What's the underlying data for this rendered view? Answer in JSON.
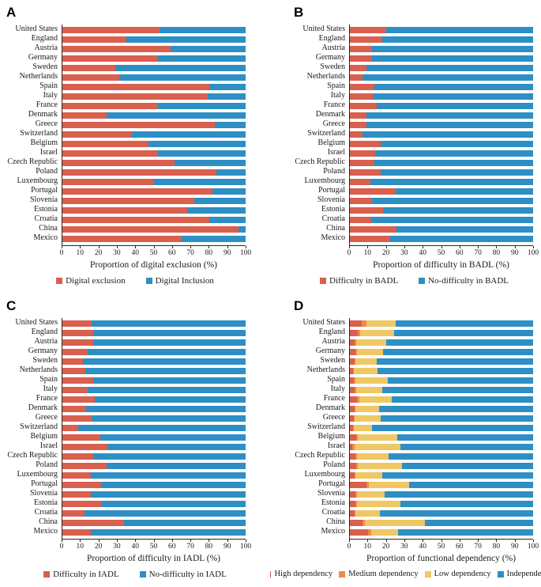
{
  "figure": {
    "background": "#ffffff"
  },
  "colors": {
    "red": "#D95F4E",
    "orange": "#F08A4B",
    "yellow": "#EFC764",
    "blue": "#2D8FC4",
    "axis": "#262626"
  },
  "chart_data": [
    {
      "type": "bar",
      "stacked": true,
      "orientation": "horizontal",
      "label": "A",
      "xlabel": "Proportion of digital exclusion (%)",
      "xlim": [
        0,
        100
      ],
      "x_ticks": [
        0,
        10,
        20,
        30,
        40,
        50,
        60,
        70,
        80,
        90,
        100
      ],
      "legend_position": "bottom",
      "categories": [
        "United States",
        "England",
        "Austria",
        "Germany",
        "Sweden",
        "Netherlands",
        "Spain",
        "Italy",
        "France",
        "Denmark",
        "Greece",
        "Switzerland",
        "Belgium",
        "Israel",
        "Czech Republic",
        "Poland",
        "Luxembourg",
        "Portugal",
        "Slovenia",
        "Estonia",
        "Croatia",
        "China",
        "Mexico"
      ],
      "series": [
        {
          "name": "Digital exclusion",
          "color": "#D95F4E",
          "values": [
            53,
            35,
            59,
            52,
            29,
            31,
            80,
            79.5,
            52,
            24,
            83,
            38,
            47,
            52,
            61,
            84,
            50,
            82,
            72,
            68,
            80,
            96,
            65
          ]
        },
        {
          "name": "Digital Inclusion",
          "color": "#2D8FC4",
          "values": [
            47,
            65,
            41,
            48,
            71,
            69,
            20,
            20.5,
            48,
            76,
            17,
            62,
            53,
            48,
            39,
            16,
            50,
            18,
            28,
            32,
            20,
            4,
            35
          ]
        }
      ]
    },
    {
      "type": "bar",
      "stacked": true,
      "orientation": "horizontal",
      "label": "B",
      "xlabel": "Proportion of difficulty in BADL (%)",
      "xlim": [
        0,
        100
      ],
      "x_ticks": [
        0,
        10,
        20,
        30,
        40,
        50,
        60,
        70,
        80,
        90,
        100
      ],
      "legend_position": "bottom",
      "categories": [
        "United States",
        "England",
        "Austria",
        "Germany",
        "Sweden",
        "Netherlands",
        "Spain",
        "Italy",
        "France",
        "Denmark",
        "Greece",
        "Switzerland",
        "Belgium",
        "Israel",
        "Czech Republic",
        "Poland",
        "Luxembourg",
        "Portugal",
        "Slovenia",
        "Estonia",
        "Croatia",
        "China",
        "Mexico"
      ],
      "series": [
        {
          "name": "Difficulty in BADL",
          "color": "#D95F4E",
          "values": [
            20,
            17.5,
            12,
            12,
            9,
            7,
            13.5,
            12.5,
            14.5,
            9,
            9,
            7,
            17,
            14,
            13.5,
            17,
            11,
            25,
            12,
            18,
            11.5,
            25.5,
            22
          ]
        },
        {
          "name": "No-difficulty in BADL",
          "color": "#2D8FC4",
          "values": [
            80,
            82.5,
            88,
            88,
            91,
            93,
            86.5,
            87.5,
            85.5,
            91,
            91,
            93,
            83,
            86,
            86.5,
            83,
            89,
            75,
            88,
            82,
            88.5,
            74.5,
            78
          ]
        }
      ]
    },
    {
      "type": "bar",
      "stacked": true,
      "orientation": "horizontal",
      "label": "C",
      "xlabel": "Proportion of difficulty in IADL (%)",
      "xlim": [
        0,
        100
      ],
      "x_ticks": [
        0,
        10,
        20,
        30,
        40,
        50,
        60,
        70,
        80,
        90,
        100
      ],
      "legend_position": "bottom",
      "categories": [
        "United States",
        "England",
        "Austria",
        "Germany",
        "Sweden",
        "Netherlands",
        "Spain",
        "Italy",
        "France",
        "Denmark",
        "Greece",
        "Switzerland",
        "Belgium",
        "Israel",
        "Czech Republic",
        "Poland",
        "Luxembourg",
        "Portugal",
        "Slovenia",
        "Estonia",
        "Croatia",
        "China",
        "Mexico"
      ],
      "series": [
        {
          "name": "Difficulty in IADL",
          "color": "#D95F4E",
          "values": [
            16,
            17,
            17,
            14,
            11,
            12.5,
            17,
            14,
            17.5,
            13,
            16,
            8.5,
            20.5,
            24.5,
            17,
            24,
            15.5,
            21,
            15.5,
            21,
            12,
            33.5,
            15.5
          ]
        },
        {
          "name": "No-difficulty in IADL",
          "color": "#2D8FC4",
          "values": [
            84,
            83,
            83,
            86,
            89,
            87.5,
            83,
            86,
            82.5,
            87,
            84,
            91.5,
            79.5,
            75.5,
            83,
            76,
            84.5,
            79,
            84.5,
            79,
            88,
            66.5,
            84.5
          ]
        }
      ]
    },
    {
      "type": "bar",
      "stacked": true,
      "orientation": "horizontal",
      "label": "D",
      "xlabel": "Proportion of functional dependency (%)",
      "xlim": [
        0,
        100
      ],
      "x_ticks": [
        0,
        10,
        20,
        30,
        40,
        50,
        60,
        70,
        80,
        90,
        100
      ],
      "legend_position": "bottom",
      "categories": [
        "United States",
        "England",
        "Austria",
        "Germany",
        "Sweden",
        "Netherlands",
        "Spain",
        "Italy",
        "France",
        "Denmark",
        "Greece",
        "Switzerland",
        "Belgium",
        "Israel",
        "Czech Republic",
        "Poland",
        "Luxembourg",
        "Portugal",
        "Slovenia",
        "Estonia",
        "Croatia",
        "China",
        "Mexico"
      ],
      "series": [
        {
          "name": "High dependency",
          "color": "#D95F4E",
          "values": [
            6.5,
            4.5,
            2.5,
            3,
            2.5,
            1.7,
            2,
            2.6,
            4,
            2.5,
            2,
            1.7,
            3.5,
            1.5,
            3,
            3.5,
            2.5,
            9,
            3,
            3,
            2.5,
            6.8,
            10
          ]
        },
        {
          "name": "Medium dependency",
          "color": "#F08A4B",
          "values": [
            2.5,
            1,
            1,
            1,
            0.5,
            0.5,
            1,
            1,
            1,
            0.5,
            0.7,
            0.3,
            1,
            1,
            1,
            1,
            0.5,
            1.5,
            1,
            1,
            0.5,
            1.5,
            1.5
          ]
        },
        {
          "name": "Low dependency",
          "color": "#EFC764",
          "values": [
            16,
            18.5,
            16.5,
            14,
            11.5,
            13,
            17.5,
            14,
            18,
            13,
            14,
            10,
            21.5,
            25,
            17,
            24,
            14.5,
            22,
            15,
            23.5,
            13.5,
            32.7,
            15
          ]
        },
        {
          "name": "Independent",
          "color": "#2D8FC4",
          "values": [
            75,
            76,
            80,
            82,
            85.5,
            84.8,
            79.5,
            82.4,
            77,
            84,
            83.3,
            88,
            74,
            72.5,
            79,
            71.5,
            82.5,
            67.5,
            81,
            72.5,
            83.5,
            59,
            73.5
          ]
        }
      ]
    }
  ]
}
